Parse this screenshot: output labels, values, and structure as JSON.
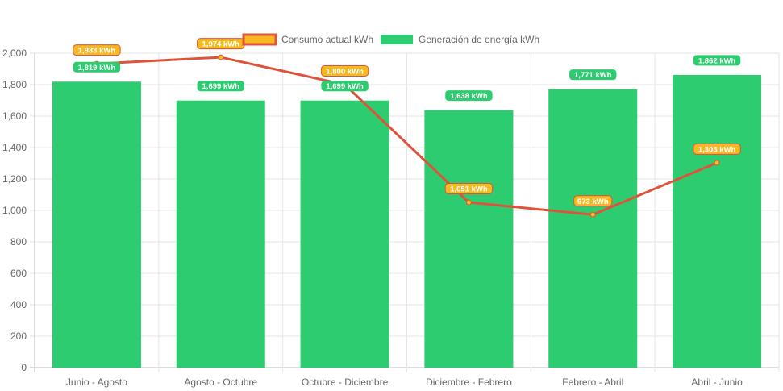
{
  "chart_data": {
    "type": "bar",
    "categories": [
      "Junio - Agosto",
      "Agosto - Octubre",
      "Octubre - Diciembre",
      "Diciembre - Febrero",
      "Febrero - Abril",
      "Abril - Junio"
    ],
    "series": [
      {
        "name": "Consumo actual kWh",
        "type": "line",
        "values": [
          1933,
          1974,
          1800,
          1051,
          973,
          1303
        ],
        "color": "#e0533b",
        "point_color": "#f5b921",
        "label_bg": "#f5b921",
        "label_border": "#e0533b"
      },
      {
        "name": "Generación de energía kWh",
        "type": "bar",
        "values": [
          1819,
          1699,
          1699,
          1638,
          1771,
          1862
        ],
        "color": "#2ecc71"
      }
    ],
    "value_suffix": " kWh",
    "ylim": [
      0,
      2000
    ],
    "yticks": [
      0,
      200,
      400,
      600,
      800,
      1000,
      1200,
      1400,
      1600,
      1800,
      2000
    ],
    "grid": true,
    "legend": "top-center",
    "title": "",
    "xlabel": "",
    "ylabel": ""
  }
}
